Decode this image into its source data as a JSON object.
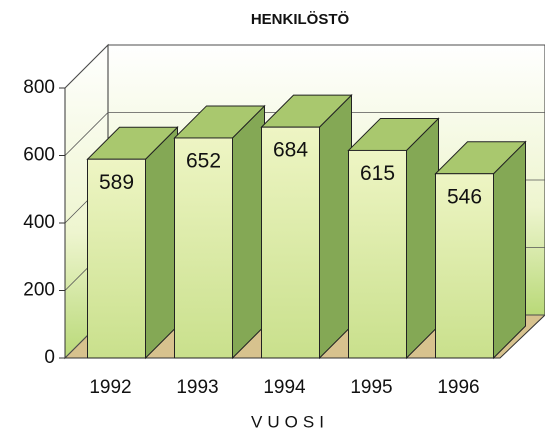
{
  "chart_data": {
    "type": "bar",
    "title": "HENKILÖSTÖ",
    "x_label": "VUOSI",
    "categories": [
      "1992",
      "1993",
      "1994",
      "1995",
      "1996"
    ],
    "values": [
      589,
      652,
      684,
      615,
      546
    ],
    "color": "#d9e8a0",
    "ylim": [
      0,
      800
    ],
    "yticks": [
      0,
      200,
      400,
      600,
      800
    ],
    "grid": true
  }
}
